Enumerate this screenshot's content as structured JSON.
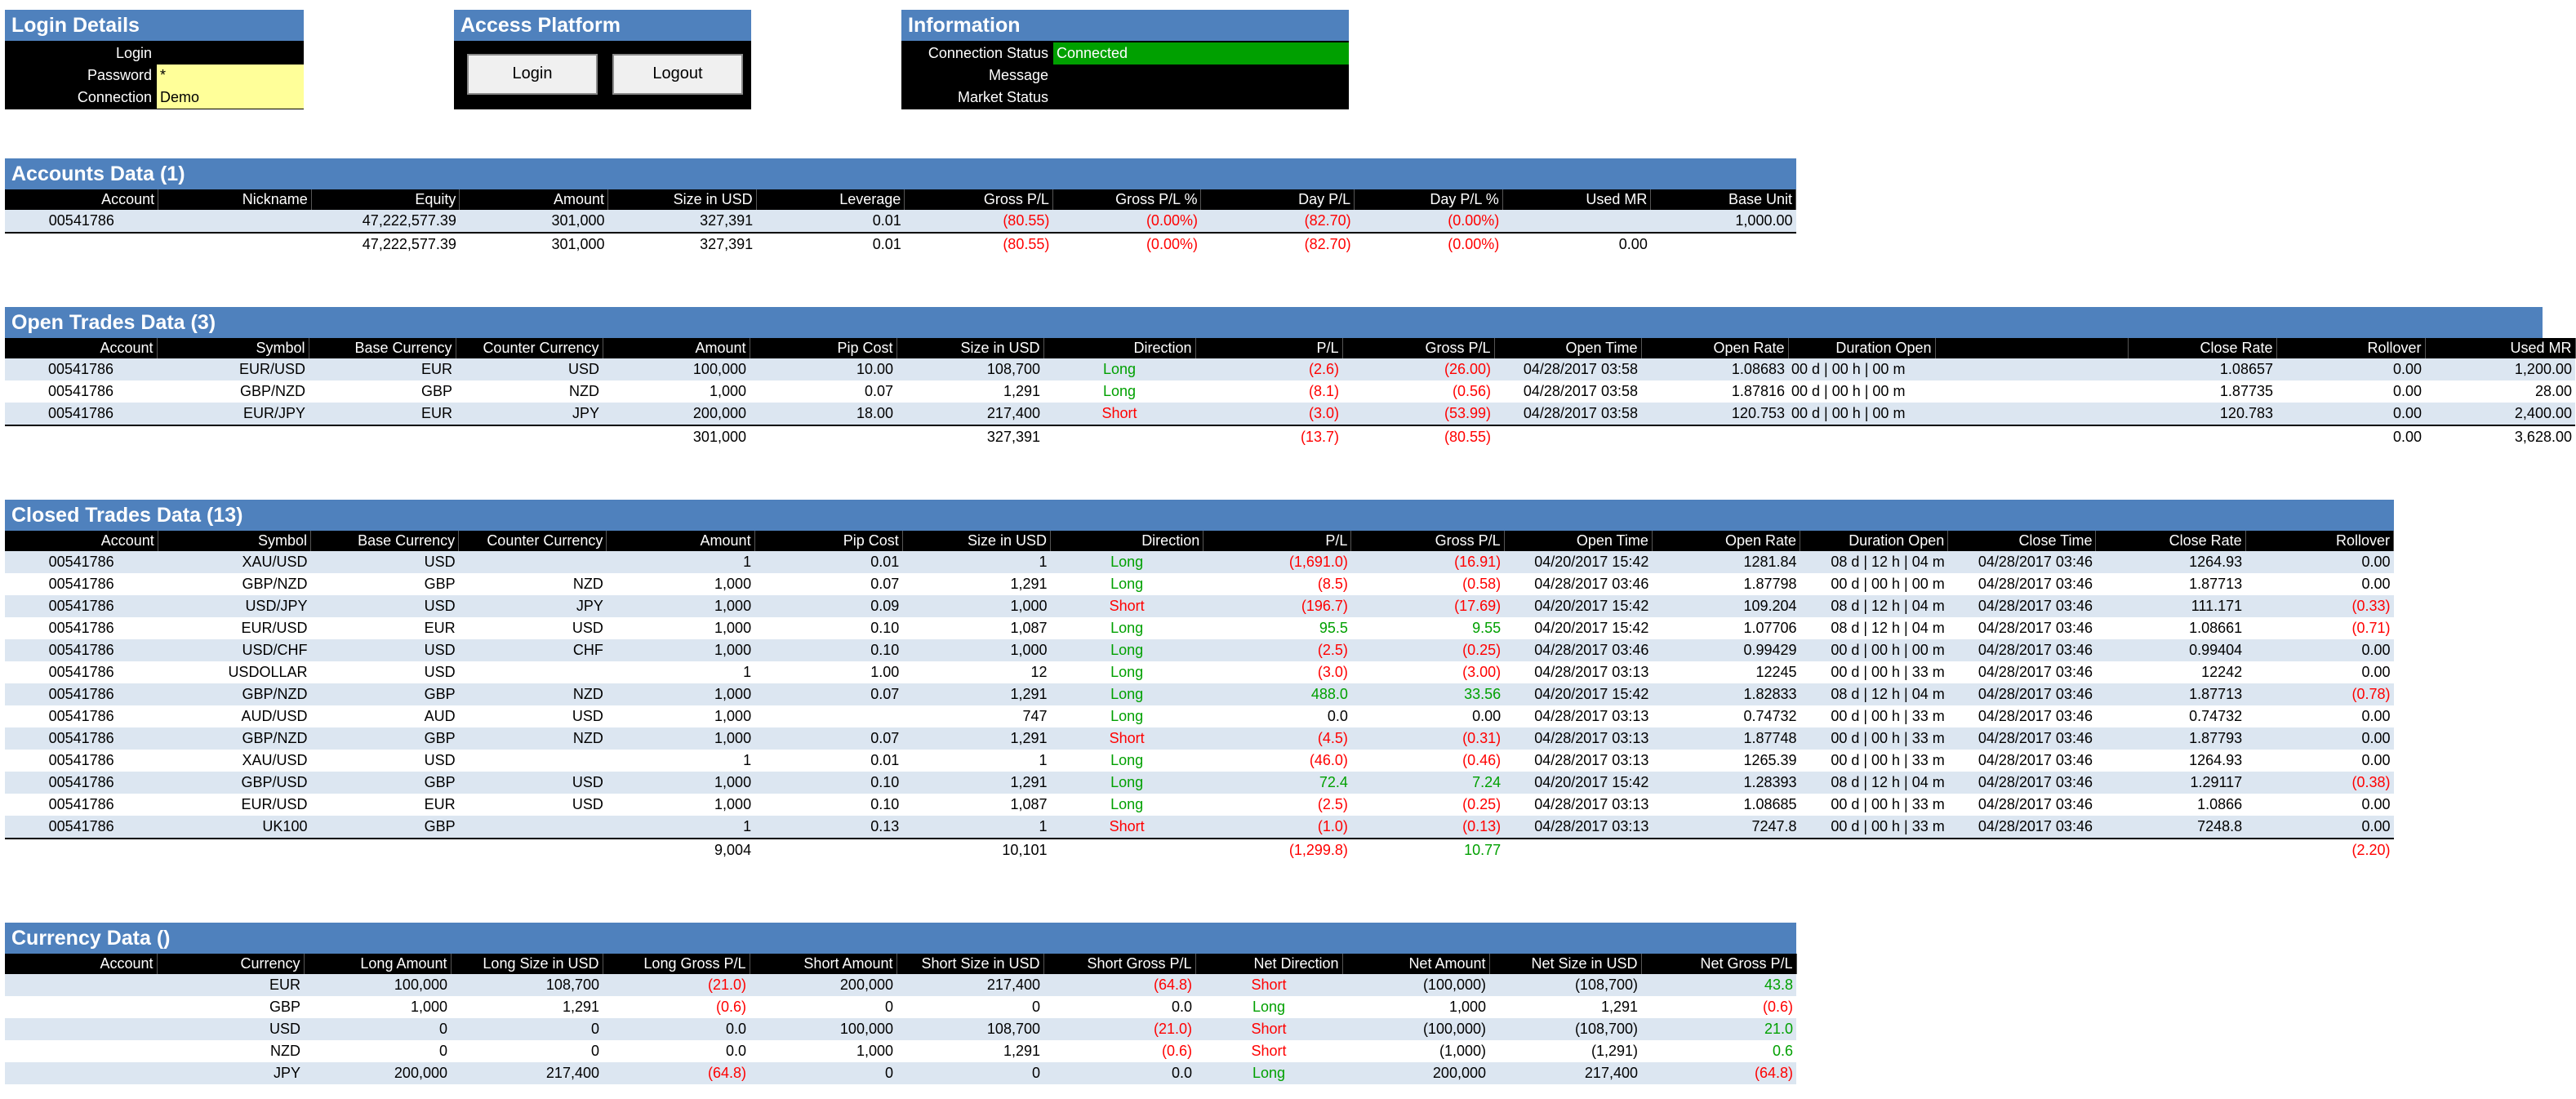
{
  "login_panel": {
    "title": "Login Details",
    "login_label": "Login",
    "login_value": "",
    "password_label": "Password",
    "password_value": "*",
    "connection_label": "Connection",
    "connection_value": "Demo"
  },
  "access_panel": {
    "title": "Access Platform",
    "login_button": "Login",
    "logout_button": "Logout"
  },
  "info_panel": {
    "title": "Information",
    "status_label": "Connection Status",
    "status_value": "Connected",
    "message_label": "Message",
    "message_value": "",
    "market_label": "Market Status",
    "market_value": ""
  },
  "colors": {
    "header_blue": "#4f81bd",
    "row_blue": "#dce6f1",
    "connected_green": "#00a000",
    "input_yellow": "#ffff99",
    "negative": "#ff0000",
    "positive": "#00a000"
  },
  "accounts": {
    "title": "Accounts Data (1)",
    "columns": [
      "Account",
      "Nickname",
      "Equity",
      "Amount",
      "Size in USD",
      "Leverage",
      "Gross P/L",
      "Gross P/L %",
      "Day P/L",
      "Day P/L %",
      "Used MR",
      "Base Unit"
    ],
    "rows": [
      [
        "00541786",
        "",
        "47,222,577.39",
        "301,000",
        "327,391",
        "0.01",
        "(80.55)",
        "(0.00%)",
        "(82.70)",
        "(0.00%)",
        "",
        "1,000.00"
      ]
    ],
    "total": [
      "",
      "",
      "47,222,577.39",
      "301,000",
      "327,391",
      "0.01",
      "(80.55)",
      "(0.00%)",
      "(82.70)",
      "(0.00%)",
      "0.00",
      ""
    ]
  },
  "open_trades": {
    "title": "Open Trades Data (3)",
    "columns": [
      "Account",
      "Symbol",
      "Base Currency",
      "Counter Currency",
      "Amount",
      "Pip Cost",
      "Size in USD",
      "Direction",
      "P/L",
      "Gross P/L",
      "Open Time",
      "Open Rate",
      "Duration Open",
      "",
      "Close Rate",
      "Rollover",
      "Used MR"
    ],
    "rows": [
      [
        "00541786",
        "EUR/USD",
        "EUR",
        "USD",
        "100,000",
        "10.00",
        "108,700",
        "Long",
        "(2.6)",
        "(26.00)",
        "04/28/2017 03:58",
        "1.08683",
        "00 d | 00 h | 00 m",
        "",
        "1.08657",
        "0.00",
        "1,200.00"
      ],
      [
        "00541786",
        "GBP/NZD",
        "GBP",
        "NZD",
        "1,000",
        "0.07",
        "1,291",
        "Long",
        "(8.1)",
        "(0.56)",
        "04/28/2017 03:58",
        "1.87816",
        "00 d | 00 h | 00 m",
        "",
        "1.87735",
        "0.00",
        "28.00"
      ],
      [
        "00541786",
        "EUR/JPY",
        "EUR",
        "JPY",
        "200,000",
        "18.00",
        "217,400",
        "Short",
        "(3.0)",
        "(53.99)",
        "04/28/2017 03:58",
        "120.753",
        "00 d | 00 h | 00 m",
        "",
        "120.783",
        "0.00",
        "2,400.00"
      ]
    ],
    "total": [
      "",
      "",
      "",
      "",
      "301,000",
      "",
      "327,391",
      "",
      "(13.7)",
      "(80.55)",
      "",
      "",
      "",
      "",
      "",
      "0.00",
      "3,628.00"
    ]
  },
  "closed_trades": {
    "title": "Closed Trades Data (13)",
    "columns": [
      "Account",
      "Symbol",
      "Base Currency",
      "Counter Currency",
      "Amount",
      "Pip Cost",
      "Size in USD",
      "Direction",
      "P/L",
      "Gross P/L",
      "Open Time",
      "Open Rate",
      "Duration Open",
      "Close Time",
      "Close Rate",
      "Rollover"
    ],
    "rows": [
      [
        "00541786",
        "XAU/USD",
        "USD",
        "",
        "1",
        "0.01",
        "1",
        "Long",
        "(1,691.0)",
        "(16.91)",
        "04/20/2017 15:42",
        "1281.84",
        "08 d | 12 h | 04 m",
        "04/28/2017 03:46",
        "1264.93",
        "0.00"
      ],
      [
        "00541786",
        "GBP/NZD",
        "GBP",
        "NZD",
        "1,000",
        "0.07",
        "1,291",
        "Long",
        "(8.5)",
        "(0.58)",
        "04/28/2017 03:46",
        "1.87798",
        "00 d | 00 h | 00 m",
        "04/28/2017 03:46",
        "1.87713",
        "0.00"
      ],
      [
        "00541786",
        "USD/JPY",
        "USD",
        "JPY",
        "1,000",
        "0.09",
        "1,000",
        "Short",
        "(196.7)",
        "(17.69)",
        "04/20/2017 15:42",
        "109.204",
        "08 d | 12 h | 04 m",
        "04/28/2017 03:46",
        "111.171",
        "(0.33)"
      ],
      [
        "00541786",
        "EUR/USD",
        "EUR",
        "USD",
        "1,000",
        "0.10",
        "1,087",
        "Long",
        "95.5",
        "9.55",
        "04/20/2017 15:42",
        "1.07706",
        "08 d | 12 h | 04 m",
        "04/28/2017 03:46",
        "1.08661",
        "(0.71)"
      ],
      [
        "00541786",
        "USD/CHF",
        "USD",
        "CHF",
        "1,000",
        "0.10",
        "1,000",
        "Long",
        "(2.5)",
        "(0.25)",
        "04/28/2017 03:46",
        "0.99429",
        "00 d | 00 h | 00 m",
        "04/28/2017 03:46",
        "0.99404",
        "0.00"
      ],
      [
        "00541786",
        "USDOLLAR",
        "USD",
        "",
        "1",
        "1.00",
        "12",
        "Long",
        "(3.0)",
        "(3.00)",
        "04/28/2017 03:13",
        "12245",
        "00 d | 00 h | 33 m",
        "04/28/2017 03:46",
        "12242",
        "0.00"
      ],
      [
        "00541786",
        "GBP/NZD",
        "GBP",
        "NZD",
        "1,000",
        "0.07",
        "1,291",
        "Long",
        "488.0",
        "33.56",
        "04/20/2017 15:42",
        "1.82833",
        "08 d | 12 h | 04 m",
        "04/28/2017 03:46",
        "1.87713",
        "(0.78)"
      ],
      [
        "00541786",
        "AUD/USD",
        "AUD",
        "USD",
        "1,000",
        "",
        "747",
        "Long",
        "0.0",
        "0.00",
        "04/28/2017 03:13",
        "0.74732",
        "00 d | 00 h | 33 m",
        "04/28/2017 03:46",
        "0.74732",
        "0.00"
      ],
      [
        "00541786",
        "GBP/NZD",
        "GBP",
        "NZD",
        "1,000",
        "0.07",
        "1,291",
        "Short",
        "(4.5)",
        "(0.31)",
        "04/28/2017 03:13",
        "1.87748",
        "00 d | 00 h | 33 m",
        "04/28/2017 03:46",
        "1.87793",
        "0.00"
      ],
      [
        "00541786",
        "XAU/USD",
        "USD",
        "",
        "1",
        "0.01",
        "1",
        "Long",
        "(46.0)",
        "(0.46)",
        "04/28/2017 03:13",
        "1265.39",
        "00 d | 00 h | 33 m",
        "04/28/2017 03:46",
        "1264.93",
        "0.00"
      ],
      [
        "00541786",
        "GBP/USD",
        "GBP",
        "USD",
        "1,000",
        "0.10",
        "1,291",
        "Long",
        "72.4",
        "7.24",
        "04/20/2017 15:42",
        "1.28393",
        "08 d | 12 h | 04 m",
        "04/28/2017 03:46",
        "1.29117",
        "(0.38)"
      ],
      [
        "00541786",
        "EUR/USD",
        "EUR",
        "USD",
        "1,000",
        "0.10",
        "1,087",
        "Long",
        "(2.5)",
        "(0.25)",
        "04/28/2017 03:13",
        "1.08685",
        "00 d | 00 h | 33 m",
        "04/28/2017 03:46",
        "1.0866",
        "0.00"
      ],
      [
        "00541786",
        "UK100",
        "GBP",
        "",
        "1",
        "0.13",
        "1",
        "Short",
        "(1.0)",
        "(0.13)",
        "04/28/2017 03:13",
        "7247.8",
        "00 d | 00 h | 33 m",
        "04/28/2017 03:46",
        "7248.8",
        "0.00"
      ]
    ],
    "total": [
      "",
      "",
      "",
      "",
      "9,004",
      "",
      "10,101",
      "",
      "(1,299.8)",
      "10.77",
      "",
      "",
      "",
      "",
      "",
      "(2.20)"
    ]
  },
  "currency": {
    "title": "Currency Data ()",
    "columns": [
      "Account",
      "Currency",
      "Long Amount",
      "Long Size in USD",
      "Long Gross P/L",
      "Short Amount",
      "Short Size in USD",
      "Short Gross P/L",
      "Net Direction",
      "Net Amount",
      "Net Size in USD",
      "Net Gross P/L"
    ],
    "rows": [
      [
        "",
        "EUR",
        "100,000",
        "108,700",
        "(21.0)",
        "200,000",
        "217,400",
        "(64.8)",
        "Short",
        "(100,000)",
        "(108,700)",
        "43.8"
      ],
      [
        "",
        "GBP",
        "1,000",
        "1,291",
        "(0.6)",
        "0",
        "0",
        "0.0",
        "Long",
        "1,000",
        "1,291",
        "(0.6)"
      ],
      [
        "",
        "USD",
        "0",
        "0",
        "0.0",
        "100,000",
        "108,700",
        "(21.0)",
        "Short",
        "(100,000)",
        "(108,700)",
        "21.0"
      ],
      [
        "",
        "NZD",
        "0",
        "0",
        "0.0",
        "1,000",
        "1,291",
        "(0.6)",
        "Short",
        "(1,000)",
        "(1,291)",
        "0.6"
      ],
      [
        "",
        "JPY",
        "200,000",
        "217,400",
        "(64.8)",
        "0",
        "0",
        "0.0",
        "Long",
        "200,000",
        "217,400",
        "(64.8)"
      ]
    ]
  }
}
